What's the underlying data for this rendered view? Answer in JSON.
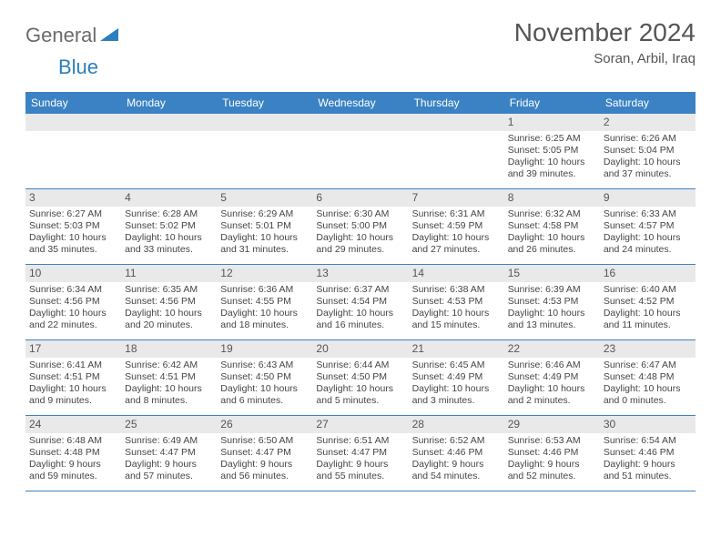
{
  "brand": {
    "part1": "General",
    "part2": "Blue"
  },
  "title": "November 2024",
  "location": "Soran, Arbil, Iraq",
  "colors": {
    "header_bg": "#3b82c4",
    "daynum_bg": "#e9e9e9",
    "text": "#454545",
    "border": "#3b82c4"
  },
  "day_names": [
    "Sunday",
    "Monday",
    "Tuesday",
    "Wednesday",
    "Thursday",
    "Friday",
    "Saturday"
  ],
  "weeks": [
    [
      {
        "empty": true
      },
      {
        "empty": true
      },
      {
        "empty": true
      },
      {
        "empty": true
      },
      {
        "empty": true
      },
      {
        "num": "1",
        "sunrise": "Sunrise: 6:25 AM",
        "sunset": "Sunset: 5:05 PM",
        "daylight": "Daylight: 10 hours and 39 minutes."
      },
      {
        "num": "2",
        "sunrise": "Sunrise: 6:26 AM",
        "sunset": "Sunset: 5:04 PM",
        "daylight": "Daylight: 10 hours and 37 minutes."
      }
    ],
    [
      {
        "num": "3",
        "sunrise": "Sunrise: 6:27 AM",
        "sunset": "Sunset: 5:03 PM",
        "daylight": "Daylight: 10 hours and 35 minutes."
      },
      {
        "num": "4",
        "sunrise": "Sunrise: 6:28 AM",
        "sunset": "Sunset: 5:02 PM",
        "daylight": "Daylight: 10 hours and 33 minutes."
      },
      {
        "num": "5",
        "sunrise": "Sunrise: 6:29 AM",
        "sunset": "Sunset: 5:01 PM",
        "daylight": "Daylight: 10 hours and 31 minutes."
      },
      {
        "num": "6",
        "sunrise": "Sunrise: 6:30 AM",
        "sunset": "Sunset: 5:00 PM",
        "daylight": "Daylight: 10 hours and 29 minutes."
      },
      {
        "num": "7",
        "sunrise": "Sunrise: 6:31 AM",
        "sunset": "Sunset: 4:59 PM",
        "daylight": "Daylight: 10 hours and 27 minutes."
      },
      {
        "num": "8",
        "sunrise": "Sunrise: 6:32 AM",
        "sunset": "Sunset: 4:58 PM",
        "daylight": "Daylight: 10 hours and 26 minutes."
      },
      {
        "num": "9",
        "sunrise": "Sunrise: 6:33 AM",
        "sunset": "Sunset: 4:57 PM",
        "daylight": "Daylight: 10 hours and 24 minutes."
      }
    ],
    [
      {
        "num": "10",
        "sunrise": "Sunrise: 6:34 AM",
        "sunset": "Sunset: 4:56 PM",
        "daylight": "Daylight: 10 hours and 22 minutes."
      },
      {
        "num": "11",
        "sunrise": "Sunrise: 6:35 AM",
        "sunset": "Sunset: 4:56 PM",
        "daylight": "Daylight: 10 hours and 20 minutes."
      },
      {
        "num": "12",
        "sunrise": "Sunrise: 6:36 AM",
        "sunset": "Sunset: 4:55 PM",
        "daylight": "Daylight: 10 hours and 18 minutes."
      },
      {
        "num": "13",
        "sunrise": "Sunrise: 6:37 AM",
        "sunset": "Sunset: 4:54 PM",
        "daylight": "Daylight: 10 hours and 16 minutes."
      },
      {
        "num": "14",
        "sunrise": "Sunrise: 6:38 AM",
        "sunset": "Sunset: 4:53 PM",
        "daylight": "Daylight: 10 hours and 15 minutes."
      },
      {
        "num": "15",
        "sunrise": "Sunrise: 6:39 AM",
        "sunset": "Sunset: 4:53 PM",
        "daylight": "Daylight: 10 hours and 13 minutes."
      },
      {
        "num": "16",
        "sunrise": "Sunrise: 6:40 AM",
        "sunset": "Sunset: 4:52 PM",
        "daylight": "Daylight: 10 hours and 11 minutes."
      }
    ],
    [
      {
        "num": "17",
        "sunrise": "Sunrise: 6:41 AM",
        "sunset": "Sunset: 4:51 PM",
        "daylight": "Daylight: 10 hours and 9 minutes."
      },
      {
        "num": "18",
        "sunrise": "Sunrise: 6:42 AM",
        "sunset": "Sunset: 4:51 PM",
        "daylight": "Daylight: 10 hours and 8 minutes."
      },
      {
        "num": "19",
        "sunrise": "Sunrise: 6:43 AM",
        "sunset": "Sunset: 4:50 PM",
        "daylight": "Daylight: 10 hours and 6 minutes."
      },
      {
        "num": "20",
        "sunrise": "Sunrise: 6:44 AM",
        "sunset": "Sunset: 4:50 PM",
        "daylight": "Daylight: 10 hours and 5 minutes."
      },
      {
        "num": "21",
        "sunrise": "Sunrise: 6:45 AM",
        "sunset": "Sunset: 4:49 PM",
        "daylight": "Daylight: 10 hours and 3 minutes."
      },
      {
        "num": "22",
        "sunrise": "Sunrise: 6:46 AM",
        "sunset": "Sunset: 4:49 PM",
        "daylight": "Daylight: 10 hours and 2 minutes."
      },
      {
        "num": "23",
        "sunrise": "Sunrise: 6:47 AM",
        "sunset": "Sunset: 4:48 PM",
        "daylight": "Daylight: 10 hours and 0 minutes."
      }
    ],
    [
      {
        "num": "24",
        "sunrise": "Sunrise: 6:48 AM",
        "sunset": "Sunset: 4:48 PM",
        "daylight": "Daylight: 9 hours and 59 minutes."
      },
      {
        "num": "25",
        "sunrise": "Sunrise: 6:49 AM",
        "sunset": "Sunset: 4:47 PM",
        "daylight": "Daylight: 9 hours and 57 minutes."
      },
      {
        "num": "26",
        "sunrise": "Sunrise: 6:50 AM",
        "sunset": "Sunset: 4:47 PM",
        "daylight": "Daylight: 9 hours and 56 minutes."
      },
      {
        "num": "27",
        "sunrise": "Sunrise: 6:51 AM",
        "sunset": "Sunset: 4:47 PM",
        "daylight": "Daylight: 9 hours and 55 minutes."
      },
      {
        "num": "28",
        "sunrise": "Sunrise: 6:52 AM",
        "sunset": "Sunset: 4:46 PM",
        "daylight": "Daylight: 9 hours and 54 minutes."
      },
      {
        "num": "29",
        "sunrise": "Sunrise: 6:53 AM",
        "sunset": "Sunset: 4:46 PM",
        "daylight": "Daylight: 9 hours and 52 minutes."
      },
      {
        "num": "30",
        "sunrise": "Sunrise: 6:54 AM",
        "sunset": "Sunset: 4:46 PM",
        "daylight": "Daylight: 9 hours and 51 minutes."
      }
    ]
  ]
}
